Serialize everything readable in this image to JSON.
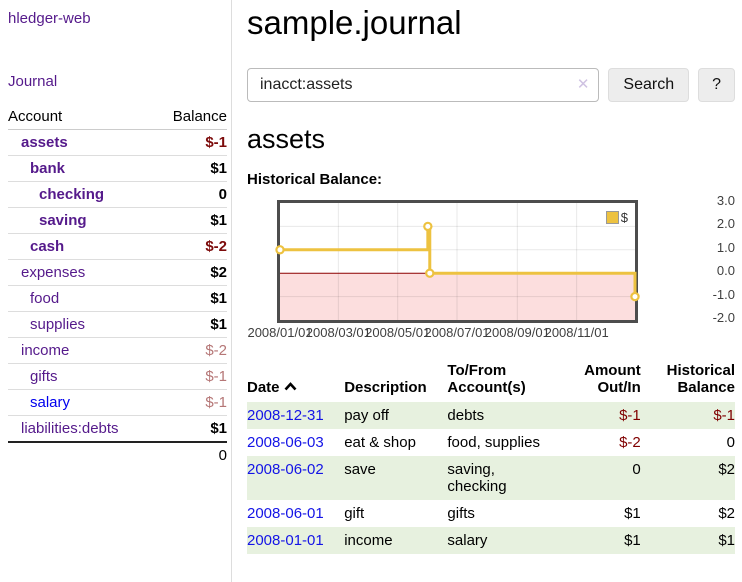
{
  "app_title": "hledger-web",
  "sidebar": {
    "journal_link": "Journal",
    "account_header": "Account",
    "balance_header": "Balance",
    "accounts": [
      {
        "name": "assets",
        "balance": "$-1"
      },
      {
        "name": "bank",
        "balance": "$1"
      },
      {
        "name": "checking",
        "balance": "0"
      },
      {
        "name": "saving",
        "balance": "$1"
      },
      {
        "name": "cash",
        "balance": "$-2"
      },
      {
        "name": "expenses",
        "balance": "$2"
      },
      {
        "name": "food",
        "balance": "$1"
      },
      {
        "name": "supplies",
        "balance": "$1"
      },
      {
        "name": "income",
        "balance": "$-2"
      },
      {
        "name": "gifts",
        "balance": "$-1"
      },
      {
        "name": "salary",
        "balance": "$-1"
      },
      {
        "name": "liabilities:debts",
        "balance": "$1"
      }
    ],
    "total": "0"
  },
  "main": {
    "title": "sample.journal",
    "search": {
      "value": "inacct:assets",
      "clear_icon": "✕",
      "search_button": "Search",
      "help_button": "?"
    },
    "account_heading": "assets",
    "chart_label": "Historical Balance:"
  },
  "chart_data": {
    "type": "line",
    "title": "Historical Balance",
    "step": true,
    "x": [
      "2008-01-01",
      "2008-06-01",
      "2008-06-03",
      "2008-12-31"
    ],
    "series": [
      {
        "name": "$",
        "color": "#edc240",
        "values": [
          1,
          2,
          0,
          -1
        ]
      }
    ],
    "xlim": [
      "2008-01-01",
      "2008-12-31"
    ],
    "ylim": [
      -2,
      3
    ],
    "yticks": [
      "3.0",
      "2.0",
      "1.0",
      "0.0",
      "-1.0",
      "-2.0"
    ],
    "xticks": [
      "2008/01/01",
      "2008/03/01",
      "2008/05/01",
      "2008/07/01",
      "2008/09/01",
      "2008/11/01"
    ],
    "legend_position": "top-right",
    "grid": true,
    "negative_region_color": "#fcdede",
    "zero_line_color": "#8b0000",
    "marker": "open-circle"
  },
  "register": {
    "headers": {
      "date": "Date",
      "description": "Description",
      "accounts": "To/From Account(s)",
      "amount": "Amount Out/In",
      "balance": "Historical Balance"
    },
    "rows": [
      {
        "date": "2008-12-31",
        "description": "pay off",
        "accounts": "debts",
        "amount": "$-1",
        "balance": "$-1"
      },
      {
        "date": "2008-06-03",
        "description": "eat & shop",
        "accounts": "food, supplies",
        "amount": "$-2",
        "balance": "0"
      },
      {
        "date": "2008-06-02",
        "description": "save",
        "accounts": "saving, checking",
        "amount": "0",
        "balance": "$2"
      },
      {
        "date": "2008-06-01",
        "description": "gift",
        "accounts": "gifts",
        "amount": "$1",
        "balance": "$2"
      },
      {
        "date": "2008-01-01",
        "description": "income",
        "accounts": "salary",
        "amount": "$1",
        "balance": "$1"
      }
    ]
  }
}
